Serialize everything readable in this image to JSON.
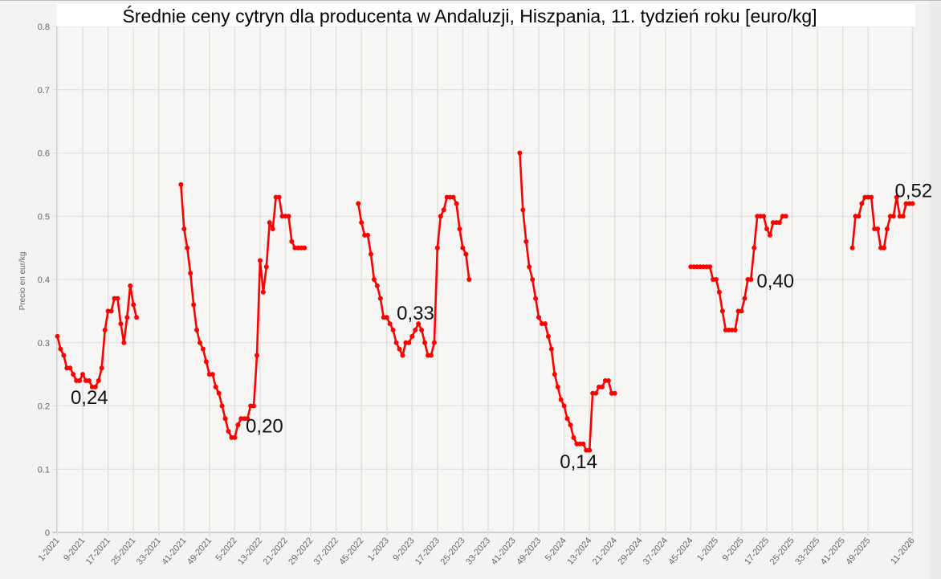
{
  "chart_data": {
    "type": "line",
    "title": "Średnie ceny cytryn dla producenta w Andaluzji, Hiszpania, 11. tydzień roku [euro/kg]",
    "xlabel": "",
    "ylabel": "Precio en eur/kg",
    "ylim": [
      0,
      0.8
    ],
    "yticks": [
      "0",
      "0.1",
      "0.2",
      "0.3",
      "0.4",
      "0.5",
      "0.6",
      "0.7",
      "0.8"
    ],
    "xticks": [
      "1-2021",
      "9-2021",
      "17-2021",
      "25-2021",
      "33-2021",
      "41-2021",
      "49-2021",
      "5-2022",
      "13-2022",
      "21-2022",
      "29-2022",
      "37-2022",
      "45-2022",
      "1-2023",
      "9-2023",
      "17-2023",
      "25-2023",
      "33-2023",
      "41-2023",
      "49-2023",
      "5-2024",
      "13-2024",
      "21-2024",
      "29-2024",
      "37-2024",
      "45-2024",
      "1-2025",
      "9-2025",
      "17-2025",
      "25-2025",
      "33-2025",
      "41-2025",
      "49-2025",
      "11-2026"
    ],
    "grid": true,
    "color": "#ff0000",
    "segments": [
      {
        "start": "1-2021",
        "values": [
          0.31,
          0.29,
          0.28,
          0.26,
          0.26,
          0.25,
          0.24,
          0.24,
          0.25,
          0.24,
          0.24,
          0.23,
          0.23,
          0.24,
          0.26,
          0.32,
          0.35,
          0.35,
          0.37,
          0.37,
          0.33,
          0.3,
          0.34,
          0.39,
          0.36,
          0.34
        ]
      },
      {
        "start": "40-2021",
        "values": [
          0.55,
          0.48,
          0.45,
          0.41,
          0.36,
          0.32,
          0.3,
          0.29,
          0.27,
          0.25,
          0.25,
          0.23,
          0.22,
          0.2,
          0.18,
          0.16,
          0.15,
          0.15,
          0.17,
          0.18,
          0.18,
          0.18,
          0.2,
          0.2,
          0.28,
          0.43,
          0.38,
          0.42,
          0.49,
          0.48,
          0.53,
          0.53,
          0.5,
          0.5,
          0.5,
          0.46,
          0.45,
          0.45,
          0.45,
          0.45
        ]
      },
      {
        "start": "44-2022",
        "values": [
          0.52,
          0.49,
          0.47,
          0.47,
          0.44,
          0.4,
          0.39,
          0.37,
          0.34,
          0.34,
          0.33,
          0.32,
          0.3,
          0.29,
          0.28,
          0.3,
          0.3,
          0.31,
          0.32,
          0.33,
          0.32,
          0.3,
          0.28,
          0.28,
          0.3,
          0.45,
          0.5,
          0.51,
          0.53,
          0.53,
          0.53,
          0.52,
          0.48,
          0.45,
          0.44,
          0.4
        ]
      },
      {
        "start": "43-2023",
        "values": [
          0.6,
          0.51,
          0.46,
          0.42,
          0.4,
          0.37,
          0.34,
          0.33,
          0.33,
          0.31,
          0.29,
          0.25,
          0.23,
          0.21,
          0.2,
          0.18,
          0.17,
          0.15,
          0.14,
          0.14,
          0.14,
          0.13,
          0.13,
          0.22,
          0.22,
          0.23,
          0.23,
          0.24,
          0.24,
          0.22,
          0.22
        ]
      },
      {
        "start": "45-2024",
        "values": [
          0.42,
          0.42,
          0.42,
          0.42,
          0.42,
          0.42,
          0.42,
          0.4,
          0.4,
          0.38,
          0.35,
          0.32,
          0.32,
          0.32,
          0.32,
          0.35,
          0.35,
          0.37,
          0.4,
          0.4,
          0.45,
          0.5,
          0.5,
          0.5,
          0.48,
          0.47,
          0.49,
          0.49,
          0.49,
          0.5,
          0.5
        ]
      },
      {
        "start": "44-2025",
        "values": [
          0.45,
          0.5,
          0.5,
          0.52,
          0.53,
          0.53,
          0.53,
          0.48,
          0.48,
          0.45,
          0.45,
          0.48,
          0.5,
          0.5,
          0.53,
          0.5,
          0.5,
          0.52,
          0.52,
          0.52
        ]
      }
    ],
    "annotations": [
      {
        "text": "0,24",
        "week": "11-2021",
        "value": 0.24
      },
      {
        "text": "0,20",
        "week": "11-2022",
        "value": 0.2
      },
      {
        "text": "0,33",
        "week": "11-2023",
        "value": 0.33
      },
      {
        "text": "0,14",
        "week": "11-2024",
        "value": 0.14
      },
      {
        "text": "0,40",
        "week": "11-2025",
        "value": 0.4
      },
      {
        "text": "0,52",
        "week": "11-2026",
        "value": 0.52
      }
    ]
  }
}
